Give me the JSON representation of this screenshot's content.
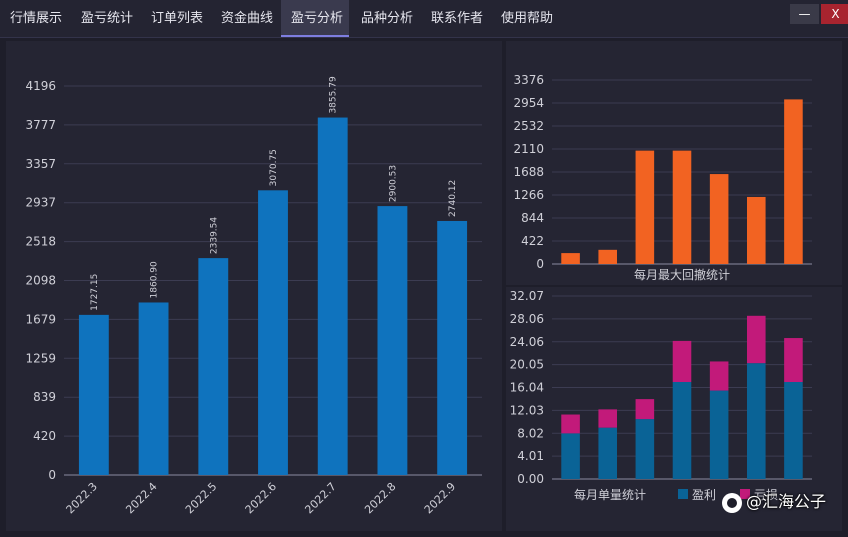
{
  "tabs": [
    {
      "label": "行情展示",
      "active": false
    },
    {
      "label": "盈亏统计",
      "active": false
    },
    {
      "label": "订单列表",
      "active": false
    },
    {
      "label": "资金曲线",
      "active": false
    },
    {
      "label": "盈亏分析",
      "active": true
    },
    {
      "label": "品种分析",
      "active": false
    },
    {
      "label": "联系作者",
      "active": false
    },
    {
      "label": "使用帮助",
      "active": false
    }
  ],
  "window": {
    "minimize": "—",
    "close": "X"
  },
  "watermark": "@汇海公子",
  "colors": {
    "blue_bar": "#0f73be",
    "orange_bar": "#f26322",
    "stack_profit": "#0a6396",
    "stack_loss": "#c21a7a",
    "accent_tab": "#7e7ee0",
    "close_btn": "#a8242f"
  },
  "chart_data": [
    {
      "type": "bar",
      "categories": [
        "2022.3",
        "2022.4",
        "2022.5",
        "2022.6",
        "2022.7",
        "2022.8",
        "2022.9"
      ],
      "values": [
        1727.15,
        1860.9,
        2339.54,
        3070.75,
        3855.79,
        2900.53,
        2740.12
      ],
      "data_labels": [
        "1727.15",
        "1860.90",
        "2339.54",
        "3070.75",
        "3855.79",
        "2900.53",
        "2740.12"
      ],
      "yticks": [
        "0",
        "420",
        "839",
        "1259",
        "1679",
        "2098",
        "2518",
        "2937",
        "3357",
        "3777",
        "4196"
      ],
      "ylim": [
        0,
        4196
      ],
      "title": "",
      "xlabel": "",
      "ylabel": "",
      "grid": true
    },
    {
      "type": "bar",
      "categories": [
        "",
        "",
        "",
        "",
        "",
        "",
        ""
      ],
      "values": [
        200,
        260,
        2080,
        2080,
        1650,
        1230,
        3020
      ],
      "yticks": [
        "0",
        "422",
        "844",
        "1266",
        "1688",
        "2110",
        "2532",
        "2954",
        "3376"
      ],
      "ylim": [
        0,
        3376
      ],
      "xlabel": "每月最大回撤统计",
      "grid": true
    },
    {
      "type": "bar",
      "stacked": true,
      "categories": [
        "",
        "",
        "",
        "",
        "",
        "",
        ""
      ],
      "series": [
        {
          "name": "盈利",
          "values": [
            8.0,
            9.0,
            10.5,
            17.0,
            15.5,
            20.3,
            17.0
          ]
        },
        {
          "name": "亏损",
          "values": [
            3.3,
            3.2,
            3.5,
            7.2,
            5.1,
            8.3,
            7.7
          ]
        }
      ],
      "yticks": [
        "0.00",
        "4.01",
        "8.02",
        "12.03",
        "16.04",
        "20.05",
        "24.06",
        "28.06",
        "32.07"
      ],
      "ylim": [
        0,
        32.07
      ],
      "xlabel": "每月单量统计",
      "legend_position": "bottom",
      "grid": true
    }
  ]
}
